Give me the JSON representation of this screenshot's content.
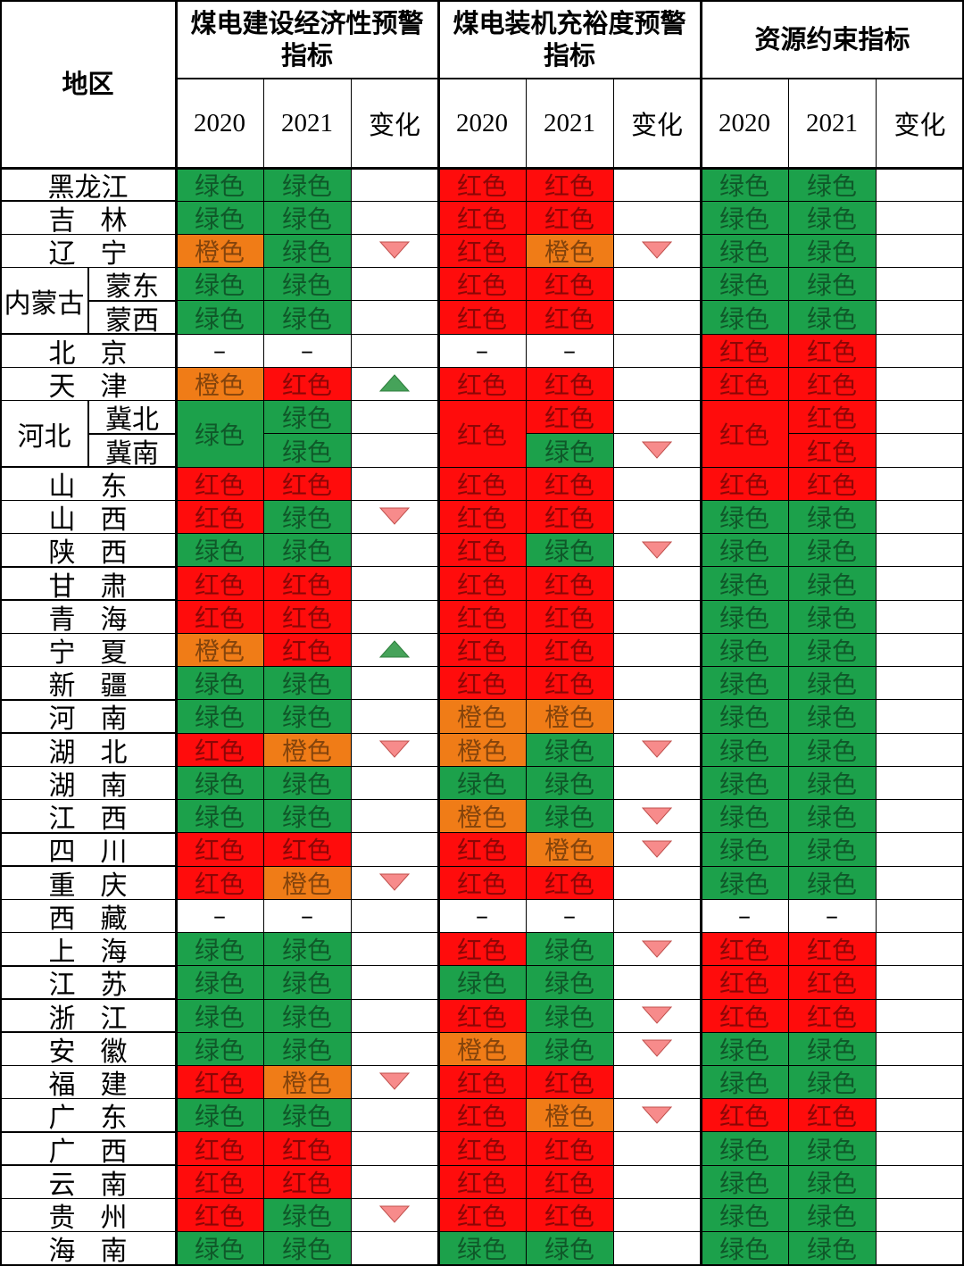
{
  "header": {
    "region": "地区",
    "groups": [
      "煤电建设经济性预警指标",
      "煤电装机充裕度预警指标",
      "资源约束指标"
    ],
    "sub": [
      "2020",
      "2021",
      "变化"
    ]
  },
  "colors": {
    "绿色": "#1ca14b",
    "红色": "#ff0c0c",
    "橙色": "#f07c17",
    "arrow_down": "#f78b8b",
    "arrow_up": "#46a35a"
  },
  "rows": [
    {
      "name": "黑龙江",
      "econ": [
        "绿色",
        "绿色",
        ""
      ],
      "adeq": [
        "红色",
        "红色",
        ""
      ],
      "res": [
        "绿色",
        "绿色",
        ""
      ]
    },
    {
      "name": "吉林",
      "econ": [
        "绿色",
        "绿色",
        ""
      ],
      "adeq": [
        "红色",
        "红色",
        ""
      ],
      "res": [
        "绿色",
        "绿色",
        ""
      ]
    },
    {
      "name": "辽宁",
      "econ": [
        "橙色",
        "绿色",
        "down"
      ],
      "adeq": [
        "红色",
        "橙色",
        "down"
      ],
      "res": [
        "绿色",
        "绿色",
        ""
      ]
    },
    {
      "group": "内蒙古",
      "name": "蒙东",
      "econ": [
        "绿色",
        "绿色",
        ""
      ],
      "adeq": [
        "红色",
        "红色",
        ""
      ],
      "res": [
        "绿色",
        "绿色",
        ""
      ]
    },
    {
      "group": "内蒙古",
      "name": "蒙西",
      "econ": [
        "绿色",
        "绿色",
        ""
      ],
      "adeq": [
        "红色",
        "红色",
        ""
      ],
      "res": [
        "绿色",
        "绿色",
        ""
      ]
    },
    {
      "name": "北京",
      "econ": [
        "–",
        "–",
        ""
      ],
      "adeq": [
        "–",
        "–",
        ""
      ],
      "res": [
        "红色",
        "红色",
        ""
      ]
    },
    {
      "name": "天津",
      "econ": [
        "橙色",
        "红色",
        "up"
      ],
      "adeq": [
        "红色",
        "红色",
        ""
      ],
      "res": [
        "红色",
        "红色",
        ""
      ]
    },
    {
      "group": "河北",
      "name": "冀北",
      "econ": [
        "绿色",
        "绿色",
        ""
      ],
      "adeq": [
        "红色",
        "红色",
        ""
      ],
      "res": [
        "红色",
        "红色",
        ""
      ]
    },
    {
      "group": "河北",
      "name": "冀南",
      "econ": [
        "绿色",
        "绿色",
        ""
      ],
      "adeq": [
        "红色",
        "绿色",
        "down"
      ],
      "res": [
        "红色",
        "红色",
        ""
      ]
    },
    {
      "name": "山东",
      "econ": [
        "红色",
        "红色",
        ""
      ],
      "adeq": [
        "红色",
        "红色",
        ""
      ],
      "res": [
        "红色",
        "红色",
        ""
      ]
    },
    {
      "name": "山西",
      "econ": [
        "红色",
        "绿色",
        "down"
      ],
      "adeq": [
        "红色",
        "红色",
        ""
      ],
      "res": [
        "绿色",
        "绿色",
        ""
      ]
    },
    {
      "name": "陕西",
      "econ": [
        "绿色",
        "绿色",
        ""
      ],
      "adeq": [
        "红色",
        "绿色",
        "down"
      ],
      "res": [
        "绿色",
        "绿色",
        ""
      ]
    },
    {
      "name": "甘肃",
      "econ": [
        "红色",
        "红色",
        ""
      ],
      "adeq": [
        "红色",
        "红色",
        ""
      ],
      "res": [
        "绿色",
        "绿色",
        ""
      ]
    },
    {
      "name": "青海",
      "econ": [
        "红色",
        "红色",
        ""
      ],
      "adeq": [
        "红色",
        "红色",
        ""
      ],
      "res": [
        "绿色",
        "绿色",
        ""
      ]
    },
    {
      "name": "宁夏",
      "econ": [
        "橙色",
        "红色",
        "up"
      ],
      "adeq": [
        "红色",
        "红色",
        ""
      ],
      "res": [
        "绿色",
        "绿色",
        ""
      ]
    },
    {
      "name": "新疆",
      "econ": [
        "绿色",
        "绿色",
        ""
      ],
      "adeq": [
        "红色",
        "红色",
        ""
      ],
      "res": [
        "绿色",
        "绿色",
        ""
      ]
    },
    {
      "name": "河南",
      "econ": [
        "绿色",
        "绿色",
        ""
      ],
      "adeq": [
        "橙色",
        "橙色",
        ""
      ],
      "res": [
        "绿色",
        "绿色",
        ""
      ]
    },
    {
      "name": "湖北",
      "econ": [
        "红色",
        "橙色",
        "down"
      ],
      "adeq": [
        "橙色",
        "绿色",
        "down"
      ],
      "res": [
        "绿色",
        "绿色",
        ""
      ]
    },
    {
      "name": "湖南",
      "econ": [
        "绿色",
        "绿色",
        ""
      ],
      "adeq": [
        "绿色",
        "绿色",
        ""
      ],
      "res": [
        "绿色",
        "绿色",
        ""
      ]
    },
    {
      "name": "江西",
      "econ": [
        "绿色",
        "绿色",
        ""
      ],
      "adeq": [
        "橙色",
        "绿色",
        "down"
      ],
      "res": [
        "绿色",
        "绿色",
        ""
      ]
    },
    {
      "name": "四川",
      "econ": [
        "红色",
        "红色",
        ""
      ],
      "adeq": [
        "红色",
        "橙色",
        "down"
      ],
      "res": [
        "绿色",
        "绿色",
        ""
      ]
    },
    {
      "name": "重庆",
      "econ": [
        "红色",
        "橙色",
        "down"
      ],
      "adeq": [
        "红色",
        "红色",
        ""
      ],
      "res": [
        "绿色",
        "绿色",
        ""
      ]
    },
    {
      "name": "西藏",
      "econ": [
        "–",
        "–",
        ""
      ],
      "adeq": [
        "–",
        "–",
        ""
      ],
      "res": [
        "–",
        "–",
        ""
      ]
    },
    {
      "name": "上海",
      "econ": [
        "绿色",
        "绿色",
        ""
      ],
      "adeq": [
        "红色",
        "绿色",
        "down"
      ],
      "res": [
        "红色",
        "红色",
        ""
      ]
    },
    {
      "name": "江苏",
      "econ": [
        "绿色",
        "绿色",
        ""
      ],
      "adeq": [
        "绿色",
        "绿色",
        ""
      ],
      "res": [
        "红色",
        "红色",
        ""
      ]
    },
    {
      "name": "浙江",
      "econ": [
        "绿色",
        "绿色",
        ""
      ],
      "adeq": [
        "红色",
        "绿色",
        "down"
      ],
      "res": [
        "红色",
        "红色",
        ""
      ]
    },
    {
      "name": "安徽",
      "econ": [
        "绿色",
        "绿色",
        ""
      ],
      "adeq": [
        "橙色",
        "绿色",
        "down"
      ],
      "res": [
        "绿色",
        "绿色",
        ""
      ]
    },
    {
      "name": "福建",
      "econ": [
        "红色",
        "橙色",
        "down"
      ],
      "adeq": [
        "红色",
        "红色",
        ""
      ],
      "res": [
        "绿色",
        "绿色",
        ""
      ]
    },
    {
      "name": "广东",
      "econ": [
        "绿色",
        "绿色",
        ""
      ],
      "adeq": [
        "红色",
        "橙色",
        "down"
      ],
      "res": [
        "红色",
        "红色",
        ""
      ]
    },
    {
      "name": "广西",
      "econ": [
        "红色",
        "红色",
        ""
      ],
      "adeq": [
        "红色",
        "红色",
        ""
      ],
      "res": [
        "绿色",
        "绿色",
        ""
      ]
    },
    {
      "name": "云南",
      "econ": [
        "红色",
        "红色",
        ""
      ],
      "adeq": [
        "红色",
        "红色",
        ""
      ],
      "res": [
        "绿色",
        "绿色",
        ""
      ]
    },
    {
      "name": "贵州",
      "econ": [
        "红色",
        "绿色",
        "down"
      ],
      "adeq": [
        "红色",
        "红色",
        ""
      ],
      "res": [
        "绿色",
        "绿色",
        ""
      ]
    },
    {
      "name": "海南",
      "econ": [
        "绿色",
        "绿色",
        ""
      ],
      "adeq": [
        "绿色",
        "绿色",
        ""
      ],
      "res": [
        "绿色",
        "绿色",
        ""
      ]
    }
  ]
}
